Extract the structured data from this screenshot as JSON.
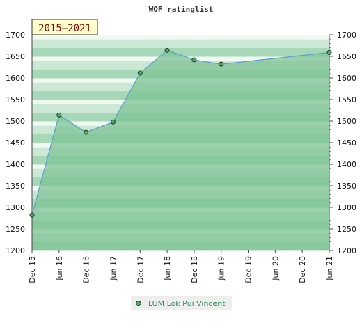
{
  "chart_data": {
    "type": "area",
    "title": "WOF ratinglist",
    "badge": "2015–2021",
    "xlabel": "",
    "ylabel": "",
    "ylim": [
      1200,
      1700
    ],
    "yticks": [
      1200,
      1250,
      1300,
      1350,
      1400,
      1450,
      1500,
      1550,
      1600,
      1650,
      1700
    ],
    "xticks": [
      "Dec 15",
      "Jun 16",
      "Dec 16",
      "Jun 17",
      "Dec 17",
      "Jun 18",
      "Dec 18",
      "Jun 19",
      "Dec 19",
      "Jun 20",
      "Dec 20",
      "Jun 21"
    ],
    "grid": false,
    "legend": "bottom",
    "series": [
      {
        "name": "LUM Lok Pui Vincent",
        "points": [
          {
            "x": "Dec 15",
            "y": 1282
          },
          {
            "x": "Jun 16",
            "y": 1514
          },
          {
            "x": "Dec 16",
            "y": 1474
          },
          {
            "x": "Jun 17",
            "y": 1498
          },
          {
            "x": "Dec 17",
            "y": 1611
          },
          {
            "x": "Jun 18",
            "y": 1664
          },
          {
            "x": "Dec 18",
            "y": 1642
          },
          {
            "x": "Jun 19",
            "y": 1632
          },
          {
            "x": "Jun 21",
            "y": 1659
          }
        ]
      }
    ],
    "colors": {
      "line": "#5b9bd5",
      "fill": "#7ec394",
      "marker": "#4fa86a",
      "legend_text": "#2e8b57",
      "badge_bg": "#ffffcc",
      "badge_text": "#8b0000",
      "band_light": "#f0f8f2",
      "band_mid": "#cbe8d4",
      "band_dark": "#a6d7b6"
    }
  }
}
